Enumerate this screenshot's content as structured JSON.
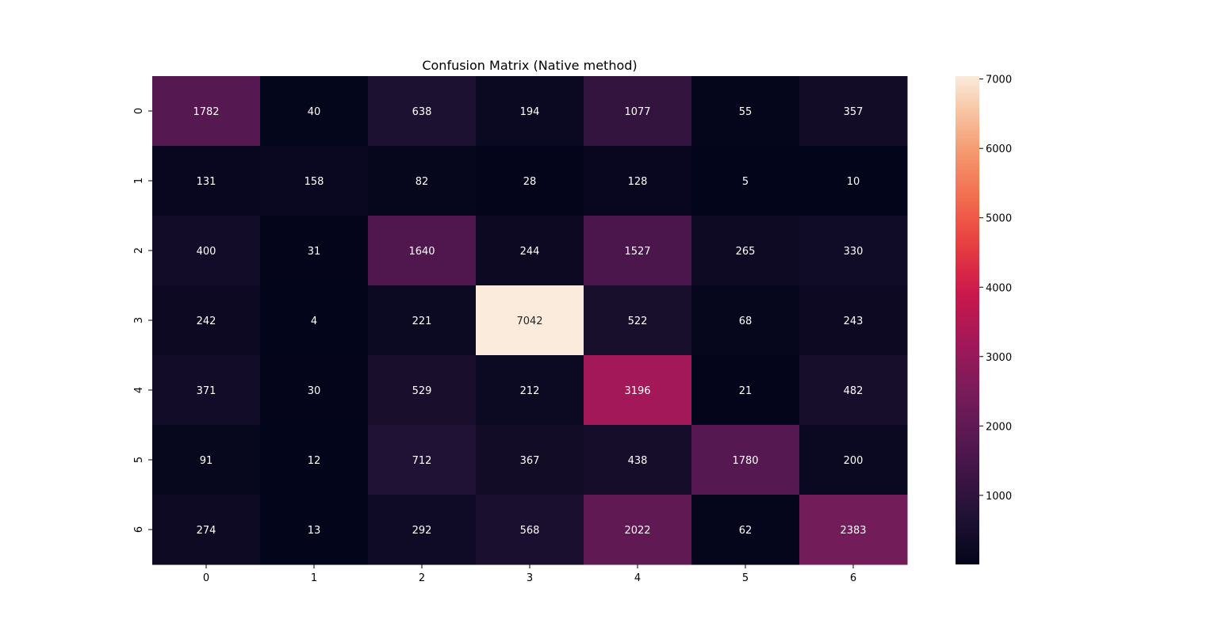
{
  "chart_data": {
    "type": "heatmap",
    "title": "Confusion Matrix (Native method)",
    "x_categories": [
      "0",
      "1",
      "2",
      "3",
      "4",
      "5",
      "6"
    ],
    "y_categories": [
      "0",
      "1",
      "2",
      "3",
      "4",
      "5",
      "6"
    ],
    "values": [
      [
        1782,
        40,
        638,
        194,
        1077,
        55,
        357
      ],
      [
        131,
        158,
        82,
        28,
        128,
        5,
        10
      ],
      [
        400,
        31,
        1640,
        244,
        1527,
        265,
        330
      ],
      [
        242,
        4,
        221,
        7042,
        522,
        68,
        243
      ],
      [
        371,
        30,
        529,
        212,
        3196,
        21,
        482
      ],
      [
        91,
        12,
        712,
        367,
        438,
        1780,
        200
      ],
      [
        274,
        13,
        292,
        568,
        2022,
        62,
        2383
      ]
    ],
    "colorscale": "rocket",
    "colorbar": {
      "range": [
        4,
        7042
      ],
      "ticks": [
        1000,
        2000,
        3000,
        4000,
        5000,
        6000,
        7000
      ]
    },
    "xlabel": "",
    "ylabel": "",
    "grid": false
  }
}
